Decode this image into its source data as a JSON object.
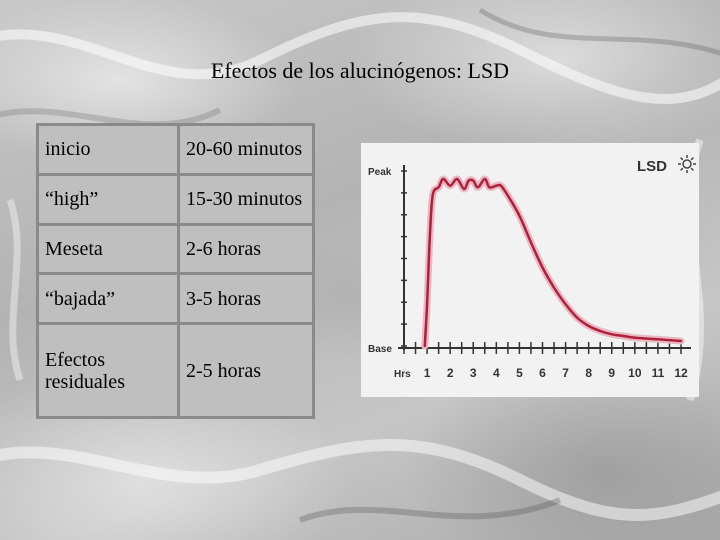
{
  "title": "Efectos de los alucinógenos: LSD",
  "table": {
    "rows": [
      {
        "phase": "inicio",
        "duration": "20-60 minutos"
      },
      {
        "phase": "“high”",
        "duration": "15-30 minutos"
      },
      {
        "phase": "Meseta",
        "duration": "2-6 horas"
      },
      {
        "phase": "“bajada”",
        "duration": "3-5 horas"
      },
      {
        "phase": "Efectos residuales",
        "duration": "2-5 horas"
      }
    ]
  },
  "chart_data": {
    "type": "line",
    "title": "LSD",
    "ylabel_top": "Peak",
    "ylabel_bottom": "Base",
    "xlabel": "Hrs",
    "categories": [
      "1",
      "2",
      "3",
      "4",
      "5",
      "6",
      "7",
      "8",
      "9",
      "10",
      "11",
      "12"
    ],
    "xlim": [
      0,
      12.2
    ],
    "ylim": [
      0,
      1
    ],
    "grid": false,
    "line_color": "#b0203a",
    "series": [
      {
        "x": [
          0.9,
          1.0,
          1.1,
          1.2,
          1.3,
          1.5,
          1.7,
          2.0,
          2.3,
          2.6,
          2.8,
          3.0,
          3.2,
          3.5,
          3.7,
          4.0,
          4.2,
          4.5,
          5.0,
          5.5,
          6.0,
          6.5,
          7.0,
          7.5,
          8.0,
          8.5,
          9.0,
          9.5,
          10.0,
          11.0,
          12.0
        ],
        "y": [
          0.0,
          0.25,
          0.6,
          0.85,
          0.93,
          0.95,
          1.0,
          0.96,
          1.0,
          0.94,
          0.99,
          0.99,
          0.95,
          1.0,
          0.95,
          0.96,
          0.96,
          0.9,
          0.78,
          0.62,
          0.47,
          0.35,
          0.25,
          0.17,
          0.12,
          0.09,
          0.07,
          0.06,
          0.05,
          0.04,
          0.03
        ]
      }
    ]
  }
}
